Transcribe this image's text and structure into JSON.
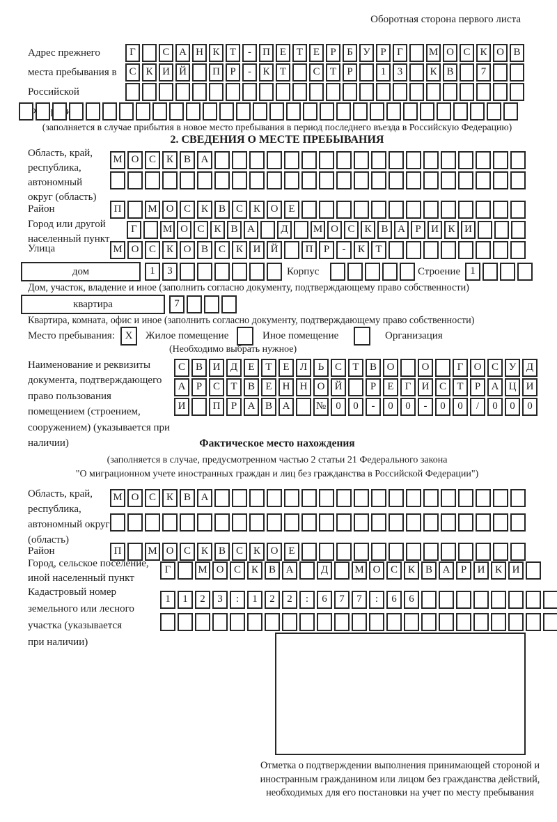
{
  "header": {
    "note": "Оборотная сторона первого листа"
  },
  "prev_address": {
    "label": "Адрес прежнего места пребывания в Российской Федерации",
    "rows": [
      [
        "Г",
        "",
        "С",
        "А",
        "Н",
        "К",
        "Т",
        "-",
        "П",
        "Е",
        "Т",
        "Е",
        "Р",
        "Б",
        "У",
        "Р",
        "Г",
        "",
        "М",
        "О",
        "С",
        "К",
        "О",
        "В"
      ],
      [
        "С",
        "К",
        "И",
        "Й",
        "",
        "П",
        "Р",
        "-",
        "К",
        "Т",
        "",
        "С",
        "Т",
        "Р",
        "",
        "1",
        "3",
        "",
        "К",
        "В",
        "",
        "7",
        "",
        ""
      ],
      [
        "",
        "",
        "",
        "",
        "",
        "",
        "",
        "",
        "",
        "",
        "",
        "",
        "",
        "",
        "",
        "",
        "",
        "",
        "",
        "",
        "",
        "",
        "",
        ""
      ],
      [
        "",
        "",
        "",
        "",
        "",
        "",
        "",
        "",
        "",
        "",
        "",
        "",
        "",
        "",
        "",
        "",
        "",
        "",
        "",
        "",
        "",
        "",
        "",
        "",
        "",
        "",
        "",
        "",
        "",
        ""
      ]
    ],
    "note": "(заполняется в случае прибытия в новое место пребывания в период последнего въезда в Российскую Федерацию)"
  },
  "section2": {
    "title": "2. СВЕДЕНИЯ О МЕСТЕ ПРЕБЫВАНИЯ",
    "region": {
      "label": "Область, край, республика, автономный округ (область)",
      "rows": [
        [
          "М",
          "О",
          "С",
          "К",
          "В",
          "А",
          "",
          "",
          "",
          "",
          "",
          "",
          "",
          "",
          "",
          "",
          "",
          "",
          "",
          "",
          "",
          "",
          "",
          ""
        ],
        [
          "",
          "",
          "",
          "",
          "",
          "",
          "",
          "",
          "",
          "",
          "",
          "",
          "",
          "",
          "",
          "",
          "",
          "",
          "",
          "",
          "",
          "",
          "",
          ""
        ]
      ]
    },
    "district": {
      "label": "Район",
      "cells": [
        "П",
        "",
        "М",
        "О",
        "С",
        "К",
        "В",
        "С",
        "К",
        "О",
        "Е",
        "",
        "",
        "",
        "",
        "",
        "",
        "",
        "",
        "",
        "",
        "",
        "",
        ""
      ]
    },
    "city": {
      "label": "Город или другой населенный пункт",
      "cells": [
        "Г",
        "",
        "М",
        "О",
        "С",
        "К",
        "В",
        "А",
        "",
        "Д",
        "",
        "М",
        "О",
        "С",
        "К",
        "В",
        "А",
        "Р",
        "И",
        "К",
        "И",
        "",
        "",
        ""
      ]
    },
    "street": {
      "label": "Улица",
      "cells": [
        "М",
        "О",
        "С",
        "К",
        "О",
        "В",
        "С",
        "К",
        "И",
        "Й",
        "",
        "П",
        "Р",
        "-",
        "К",
        "Т",
        "",
        "",
        "",
        "",
        "",
        "",
        "",
        ""
      ]
    },
    "house": {
      "box_label": "дом",
      "cells": [
        "1",
        "3",
        "",
        "",
        "",
        "",
        "",
        ""
      ],
      "korpus_label": "Корпус",
      "korpus_cells": [
        "",
        "",
        "",
        "",
        ""
      ],
      "stroenie_label": "Строение",
      "stroenie_cells": [
        "1",
        "",
        "",
        ""
      ],
      "note": "Дом, участок, владение и иное (заполнить согласно документу, подтверждающему право собственности)"
    },
    "apartment": {
      "box_label": "квартира",
      "cells": [
        "7",
        "",
        "",
        ""
      ],
      "note": "Квартира, комната, офис и иное (заполнить согласно документу, подтверждающему право собственности)"
    },
    "stay": {
      "label": "Место пребывания:",
      "options": [
        {
          "mark": "X",
          "label": "Жилое помещение"
        },
        {
          "mark": "",
          "label": "Иное помещение"
        },
        {
          "mark": "",
          "label": "Организация"
        }
      ],
      "note": "(Необходимо выбрать нужное)"
    },
    "doc": {
      "label": "Наименование и реквизиты документа, подтверждающего право пользования помещением (строением, сооружением) (указывается при наличии)",
      "rows": [
        [
          "С",
          "В",
          "И",
          "Д",
          "Е",
          "Т",
          "Е",
          "Л",
          "Ь",
          "С",
          "Т",
          "В",
          "О",
          "",
          "О",
          "",
          "Г",
          "О",
          "С",
          "У",
          "Д"
        ],
        [
          "А",
          "Р",
          "С",
          "Т",
          "В",
          "Е",
          "Н",
          "Н",
          "О",
          "Й",
          "",
          "Р",
          "Е",
          "Г",
          "И",
          "С",
          "Т",
          "Р",
          "А",
          "Ц",
          "И"
        ],
        [
          "И",
          "",
          "П",
          "Р",
          "А",
          "В",
          "А",
          "",
          "№",
          "0",
          "0",
          "-",
          "0",
          "0",
          "-",
          "0",
          "0",
          "/",
          "0",
          "0",
          "0"
        ]
      ]
    }
  },
  "actual": {
    "title": "Фактическое место нахождения",
    "note1": "(заполняется в случае, предусмотренном частью 2 статьи 21 Федерального закона",
    "note2": "\"О миграционном учете иностранных граждан и лиц без гражданства в Российской Федерации\")",
    "region": {
      "label": "Область, край, республика, автономный округ (область)",
      "rows": [
        [
          "М",
          "О",
          "С",
          "К",
          "В",
          "А",
          "",
          "",
          "",
          "",
          "",
          "",
          "",
          "",
          "",
          "",
          "",
          "",
          "",
          "",
          "",
          "",
          "",
          ""
        ],
        [
          "",
          "",
          "",
          "",
          "",
          "",
          "",
          "",
          "",
          "",
          "",
          "",
          "",
          "",
          "",
          "",
          "",
          "",
          "",
          "",
          "",
          "",
          "",
          ""
        ]
      ]
    },
    "district": {
      "label": "Район",
      "cells": [
        "П",
        "",
        "М",
        "О",
        "С",
        "К",
        "В",
        "С",
        "К",
        "О",
        "Е",
        "",
        "",
        "",
        "",
        "",
        "",
        "",
        "",
        "",
        "",
        "",
        "",
        ""
      ]
    },
    "city": {
      "label": "Город, сельское поселение, иной населенный пункт",
      "cells": [
        "Г",
        "",
        "М",
        "О",
        "С",
        "К",
        "В",
        "А",
        "",
        "Д",
        "",
        "М",
        "О",
        "С",
        "К",
        "В",
        "А",
        "Р",
        "И",
        "К",
        "И",
        ""
      ]
    },
    "cadastre": {
      "label": "Кадастровый номер земельного или лесного участка (указывается при наличии)",
      "rows": [
        [
          "1",
          "1",
          "2",
          "3",
          ":",
          "1",
          "2",
          "2",
          ":",
          "6",
          "7",
          "7",
          ":",
          "6",
          "6",
          "",
          "",
          "",
          "",
          "",
          "",
          "",
          ""
        ],
        [
          "",
          "",
          "",
          "",
          "",
          "",
          "",
          "",
          "",
          "",
          "",
          "",
          "",
          "",
          "",
          "",
          "",
          "",
          "",
          "",
          "",
          "",
          ""
        ]
      ]
    }
  },
  "stamp": {
    "caption": "Отметка о подтверждении выполнения принимающей стороной и иностранным гражданином или лицом без гражданства действий, необходимых для его постановки на учет по месту пребывания"
  }
}
